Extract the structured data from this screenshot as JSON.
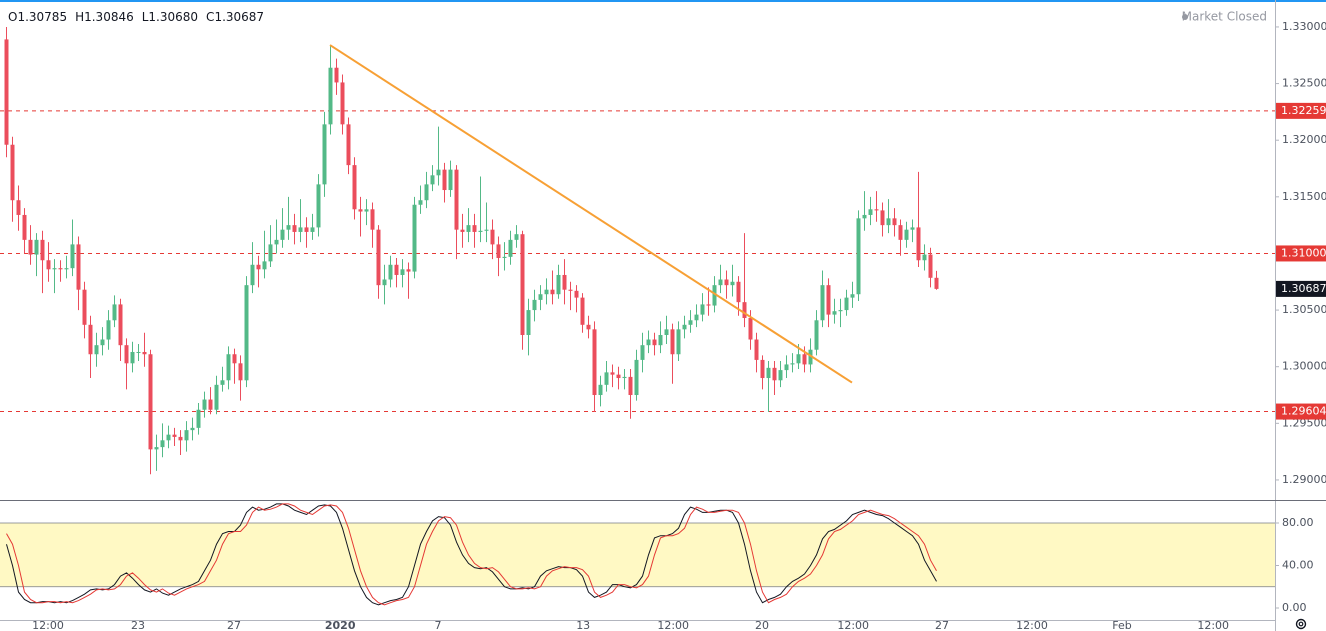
{
  "header": {
    "ohlc": [
      {
        "key": "O",
        "text": "1.30785"
      },
      {
        "key": "H",
        "text": "1.30846"
      },
      {
        "key": "L",
        "text": "1.30680"
      },
      {
        "key": "C",
        "text": "1.30687"
      }
    ],
    "status": "Market Closed"
  },
  "chart_data": [
    {
      "type": "candlestick",
      "up_color": "#53b987",
      "down_color": "#eb4d5c",
      "grid": false,
      "xlim": [
        -1,
        211.5
      ],
      "xticks": [
        {
          "value": 7,
          "label": "12:00"
        },
        {
          "value": 22,
          "label": "23"
        },
        {
          "value": 38,
          "label": "27"
        },
        {
          "value": 55.7,
          "label": "2020"
        },
        {
          "value": 72,
          "label": "7"
        },
        {
          "value": 96.2,
          "label": "13"
        },
        {
          "value": 111.2,
          "label": "12:00"
        },
        {
          "value": 126,
          "label": "20"
        },
        {
          "value": 141.2,
          "label": "12:00"
        },
        {
          "value": 156,
          "label": "27"
        },
        {
          "value": 171,
          "label": "12:00"
        },
        {
          "value": 186,
          "label": "Feb"
        },
        {
          "value": 201.2,
          "label": "12:00"
        }
      ],
      "ylim": [
        1.28823,
        1.33238
      ],
      "yticks": [
        {
          "value": 1.29,
          "label": "1.29000"
        },
        {
          "value": 1.295,
          "label": "1.29500"
        },
        {
          "value": 1.3,
          "label": "1.30000"
        },
        {
          "value": 1.305,
          "label": "1.30500"
        },
        {
          "value": 1.31,
          "label": "1.31000"
        },
        {
          "value": 1.315,
          "label": "1.31500"
        },
        {
          "value": 1.32,
          "label": "1.32000"
        },
        {
          "value": 1.325,
          "label": "1.32500"
        },
        {
          "value": 1.33,
          "label": "1.33000"
        }
      ],
      "hlines": [
        {
          "value": 1.32259,
          "label": "1.32259"
        },
        {
          "value": 1.31,
          "label": "1.31000"
        },
        {
          "value": 1.29604,
          "label": "1.29604"
        }
      ],
      "hline_color": "#e53935",
      "trendline": {
        "x": [
          54,
          141
        ],
        "y": [
          1.3284,
          1.2986
        ],
        "color": "#f7a035"
      },
      "open": [
        1.3289,
        1.3196,
        1.3147,
        1.3134,
        1.3112,
        1.3099,
        1.3112,
        1.3094,
        1.3086,
        1.3087,
        1.3086,
        1.3087,
        1.3108,
        1.3068,
        1.3037,
        1.3011,
        1.3019,
        1.3024,
        1.3041,
        1.3055,
        1.3019,
        1.3003,
        1.3013,
        1.3013,
        1.3011,
        1.2927,
        1.2929,
        1.2935,
        1.294,
        1.2938,
        1.2935,
        1.2944,
        1.2946,
        1.2962,
        1.2971,
        1.2962,
        1.2984,
        1.2988,
        1.3011,
        1.3003,
        1.2988,
        1.3072,
        1.309,
        1.3086,
        1.3093,
        1.3108,
        1.3112,
        1.3121,
        1.3125,
        1.3119,
        1.3123,
        1.3119,
        1.3123,
        1.3161,
        1.3214,
        1.3264,
        1.3251,
        1.3214,
        1.3178,
        1.3139,
        1.3137,
        1.3139,
        1.3121,
        1.3072,
        1.3077,
        1.309,
        1.3081,
        1.3086,
        1.3084,
        1.3143,
        1.3147,
        1.3161,
        1.3169,
        1.3174,
        1.3156,
        1.3174,
        1.3121,
        1.3119,
        1.3125,
        1.3119,
        1.312,
        1.3121,
        1.3108,
        1.3096,
        1.3097,
        1.3112,
        1.3117,
        1.3028,
        1.305,
        1.3059,
        1.3064,
        1.3068,
        1.3064,
        1.3081,
        1.3068,
        1.3067,
        1.3061,
        1.3037,
        1.3033,
        1.2975,
        1.2984,
        1.2995,
        1.2993,
        1.299,
        1.2991,
        1.2975,
        1.3006,
        1.3019,
        1.3024,
        1.3019,
        1.3028,
        1.3033,
        1.3011,
        1.3033,
        1.3037,
        1.3041,
        1.3046,
        1.3055,
        1.3054,
        1.3072,
        1.3077,
        1.3072,
        1.3075,
        1.3057,
        1.3043,
        1.3024,
        1.3006,
        1.299,
        1.2999,
        1.2988,
        1.2997,
        1.3002,
        1.3003,
        1.3011,
        1.3002,
        1.3015,
        1.3041,
        1.3072,
        1.3046,
        1.3049,
        1.305,
        1.3061,
        1.3064,
        1.3131,
        1.3134,
        1.3139,
        1.3138,
        1.3125,
        1.3131,
        1.3125,
        1.3112,
        1.3121,
        1.3123,
        1.3094,
        1.3099,
        1.30785
      ],
      "high": [
        1.33,
        1.3203,
        1.316,
        1.314,
        1.3125,
        1.3118,
        1.312,
        1.311,
        1.3095,
        1.3094,
        1.3098,
        1.313,
        1.3115,
        1.3075,
        1.3045,
        1.303,
        1.3035,
        1.305,
        1.3063,
        1.306,
        1.3025,
        1.3022,
        1.302,
        1.303,
        1.3015,
        1.294,
        1.295,
        1.2948,
        1.2946,
        1.2944,
        1.2952,
        1.2955,
        1.2968,
        1.2978,
        1.2982,
        1.2992,
        1.3,
        1.3018,
        1.3016,
        1.301,
        1.308,
        1.311,
        1.3098,
        1.312,
        1.3125,
        1.313,
        1.314,
        1.315,
        1.3135,
        1.3148,
        1.3132,
        1.3135,
        1.317,
        1.3225,
        1.3284,
        1.3272,
        1.3258,
        1.322,
        1.3185,
        1.315,
        1.3148,
        1.3145,
        1.3125,
        1.309,
        1.3098,
        1.3096,
        1.3095,
        1.3092,
        1.315,
        1.316,
        1.3172,
        1.3178,
        1.3212,
        1.318,
        1.3182,
        1.3178,
        1.3135,
        1.314,
        1.3135,
        1.3168,
        1.3145,
        1.313,
        1.3115,
        1.311,
        1.312,
        1.3125,
        1.312,
        1.306,
        1.3068,
        1.3072,
        1.3078,
        1.3085,
        1.309,
        1.3095,
        1.3075,
        1.3072,
        1.3065,
        1.3045,
        1.304,
        1.2992,
        1.3005,
        1.3002,
        1.3,
        1.2998,
        1.2998,
        1.3015,
        1.303,
        1.3032,
        1.303,
        1.304,
        1.3045,
        1.3038,
        1.304,
        1.3045,
        1.305,
        1.3055,
        1.3065,
        1.307,
        1.308,
        1.309,
        1.3085,
        1.309,
        1.308,
        1.3118,
        1.305,
        1.303,
        1.301,
        1.3005,
        1.3005,
        1.3005,
        1.301,
        1.3012,
        1.302,
        1.3018,
        1.3025,
        1.305,
        1.3085,
        1.3078,
        1.306,
        1.306,
        1.3068,
        1.3075,
        1.3138,
        1.3155,
        1.315,
        1.3155,
        1.3145,
        1.3148,
        1.314,
        1.313,
        1.3128,
        1.313,
        1.3172,
        1.3108,
        1.3105,
        1.30846
      ],
      "low": [
        1.3185,
        1.3128,
        1.312,
        1.31,
        1.309,
        1.308,
        1.3065,
        1.3075,
        1.3065,
        1.3075,
        1.3078,
        1.308,
        1.305,
        1.3025,
        1.299,
        1.3,
        1.301,
        1.3015,
        1.3035,
        1.3005,
        1.298,
        1.2995,
        1.3005,
        1.3,
        1.2905,
        1.2908,
        1.292,
        1.2928,
        1.293,
        1.2922,
        1.2925,
        1.2935,
        1.294,
        1.2955,
        1.2958,
        1.2958,
        1.2978,
        1.298,
        1.2985,
        1.297,
        1.2982,
        1.3065,
        1.307,
        1.3078,
        1.3088,
        1.31,
        1.3105,
        1.3112,
        1.3108,
        1.311,
        1.3105,
        1.3112,
        1.3115,
        1.315,
        1.3205,
        1.324,
        1.3205,
        1.317,
        1.313,
        1.3115,
        1.3125,
        1.3105,
        1.306,
        1.3055,
        1.307,
        1.307,
        1.307,
        1.306,
        1.3078,
        1.3135,
        1.314,
        1.3155,
        1.316,
        1.3145,
        1.315,
        1.3095,
        1.3105,
        1.311,
        1.3105,
        1.311,
        1.311,
        1.3095,
        1.308,
        1.3085,
        1.309,
        1.3105,
        1.3015,
        1.301,
        1.304,
        1.305,
        1.3055,
        1.3055,
        1.306,
        1.3055,
        1.305,
        1.3048,
        1.303,
        1.3025,
        1.296,
        1.2965,
        1.2978,
        1.2982,
        1.298,
        1.298,
        1.2954,
        1.297,
        1.2995,
        1.3012,
        1.301,
        1.3012,
        1.302,
        1.2985,
        1.3005,
        1.3025,
        1.303,
        1.3035,
        1.304,
        1.3045,
        1.3048,
        1.3065,
        1.306,
        1.3062,
        1.3045,
        1.3035,
        1.3015,
        1.2995,
        1.298,
        1.296,
        1.2975,
        1.2982,
        1.299,
        1.2995,
        1.2998,
        1.2995,
        1.2995,
        1.301,
        1.3035,
        1.3035,
        1.3038,
        1.3035,
        1.3045,
        1.3052,
        1.3058,
        1.312,
        1.3125,
        1.3128,
        1.3115,
        1.3118,
        1.3115,
        1.3098,
        1.3105,
        1.311,
        1.3088,
        1.3085,
        1.307,
        1.3068
      ],
      "close": [
        1.3196,
        1.3147,
        1.3134,
        1.3112,
        1.3099,
        1.3112,
        1.3094,
        1.3086,
        1.3087,
        1.3086,
        1.3087,
        1.3108,
        1.3068,
        1.3037,
        1.3011,
        1.3019,
        1.3024,
        1.3041,
        1.3055,
        1.3019,
        1.3003,
        1.3013,
        1.3013,
        1.3011,
        1.2927,
        1.2929,
        1.2935,
        1.294,
        1.2938,
        1.2935,
        1.2944,
        1.2946,
        1.2962,
        1.2971,
        1.2962,
        1.2984,
        1.2988,
        1.3011,
        1.3003,
        1.2988,
        1.3072,
        1.309,
        1.3086,
        1.3093,
        1.3108,
        1.3112,
        1.3121,
        1.3125,
        1.3119,
        1.3123,
        1.3119,
        1.3123,
        1.3161,
        1.3214,
        1.3264,
        1.3251,
        1.3214,
        1.3178,
        1.3139,
        1.3137,
        1.3139,
        1.3121,
        1.3072,
        1.3077,
        1.309,
        1.3081,
        1.3086,
        1.3084,
        1.3143,
        1.3147,
        1.3161,
        1.3169,
        1.3174,
        1.3156,
        1.3174,
        1.3121,
        1.3119,
        1.3125,
        1.3119,
        1.312,
        1.3121,
        1.3108,
        1.3096,
        1.3097,
        1.3112,
        1.3117,
        1.3028,
        1.305,
        1.3059,
        1.3064,
        1.3068,
        1.3064,
        1.3081,
        1.3068,
        1.3067,
        1.3061,
        1.3037,
        1.3033,
        1.2975,
        1.2984,
        1.2995,
        1.2993,
        1.299,
        1.2991,
        1.2975,
        1.3006,
        1.3019,
        1.3024,
        1.3019,
        1.3028,
        1.3033,
        1.3011,
        1.3033,
        1.3037,
        1.3041,
        1.3046,
        1.3055,
        1.3054,
        1.3072,
        1.3077,
        1.3072,
        1.3075,
        1.3057,
        1.3043,
        1.3024,
        1.3006,
        1.299,
        1.2999,
        1.2988,
        1.2997,
        1.3002,
        1.3003,
        1.3011,
        1.3002,
        1.3015,
        1.3041,
        1.3072,
        1.3046,
        1.3049,
        1.305,
        1.3061,
        1.3064,
        1.3131,
        1.3134,
        1.3139,
        1.3138,
        1.3125,
        1.3131,
        1.3125,
        1.3112,
        1.3121,
        1.3123,
        1.3094,
        1.3099,
        1.30785,
        1.30687
      ]
    },
    {
      "type": "line",
      "ylim": [
        -11.3,
        100.7
      ],
      "band": [
        20,
        80
      ],
      "band_color": "#fff9c4",
      "yticks": [
        {
          "value": 0,
          "label": "0.00"
        },
        {
          "value": 40,
          "label": "40.00"
        },
        {
          "value": 80,
          "label": "80.00"
        }
      ],
      "series": [
        {
          "color": "#131722",
          "values": [
            60,
            40,
            15,
            8,
            5,
            5,
            6,
            6,
            5,
            6,
            5,
            7,
            10,
            13,
            17,
            18,
            17,
            18,
            22,
            30,
            33,
            28,
            22,
            17,
            15,
            18,
            14,
            12,
            15,
            18,
            20,
            22,
            25,
            35,
            45,
            60,
            70,
            72,
            72,
            78,
            90,
            95,
            92,
            93,
            95,
            98,
            98,
            96,
            92,
            90,
            88,
            92,
            96,
            97,
            96,
            90,
            75,
            55,
            35,
            20,
            10,
            5,
            3,
            5,
            7,
            8,
            10,
            20,
            40,
            60,
            72,
            82,
            86,
            85,
            78,
            62,
            50,
            42,
            38,
            37,
            38,
            34,
            27,
            20,
            18,
            18,
            19,
            18,
            20,
            30,
            35,
            37,
            39,
            38,
            38,
            36,
            30,
            15,
            10,
            12,
            15,
            22,
            22,
            20,
            19,
            22,
            30,
            50,
            66,
            68,
            68,
            70,
            75,
            88,
            95,
            93,
            90,
            90,
            91,
            92,
            92,
            90,
            80,
            60,
            35,
            15,
            5,
            8,
            10,
            13,
            20,
            25,
            28,
            32,
            40,
            50,
            65,
            72,
            74,
            78,
            82,
            88,
            90,
            92,
            90,
            88,
            87,
            84,
            80,
            76,
            72,
            68,
            60,
            45,
            35,
            25
          ]
        },
        {
          "color": "#e53935",
          "values": [
            70,
            60,
            40,
            15,
            8,
            5,
            5,
            6,
            6,
            5,
            6,
            5,
            7,
            10,
            13,
            17,
            18,
            17,
            18,
            22,
            30,
            33,
            28,
            22,
            17,
            15,
            18,
            14,
            12,
            15,
            18,
            20,
            22,
            25,
            35,
            45,
            60,
            70,
            72,
            72,
            78,
            90,
            95,
            92,
            93,
            95,
            98,
            98,
            96,
            92,
            90,
            88,
            92,
            96,
            97,
            96,
            90,
            75,
            55,
            35,
            20,
            10,
            5,
            3,
            5,
            7,
            8,
            10,
            20,
            40,
            60,
            72,
            82,
            86,
            85,
            78,
            62,
            50,
            42,
            38,
            37,
            38,
            34,
            27,
            20,
            18,
            18,
            19,
            18,
            20,
            30,
            35,
            37,
            39,
            38,
            38,
            36,
            30,
            15,
            10,
            12,
            15,
            22,
            22,
            20,
            19,
            22,
            30,
            50,
            66,
            68,
            68,
            70,
            75,
            88,
            95,
            93,
            90,
            90,
            91,
            92,
            92,
            90,
            80,
            60,
            35,
            15,
            5,
            8,
            10,
            13,
            20,
            25,
            28,
            32,
            40,
            50,
            65,
            72,
            74,
            78,
            82,
            88,
            90,
            92,
            90,
            88,
            87,
            84,
            80,
            76,
            72,
            68,
            60,
            45,
            35
          ]
        }
      ]
    }
  ]
}
